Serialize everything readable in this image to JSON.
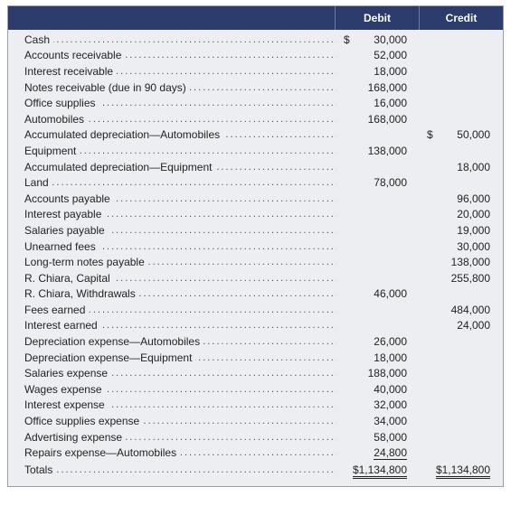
{
  "header": {
    "debit": "Debit",
    "credit": "Credit"
  },
  "currency_symbol": "$",
  "rows": [
    {
      "label": "Cash",
      "debit": "30,000",
      "credit": "",
      "debit_symbol": true
    },
    {
      "label": "Accounts receivable",
      "debit": "52,000",
      "credit": ""
    },
    {
      "label": "Interest receivable",
      "debit": "18,000",
      "credit": ""
    },
    {
      "label": "Notes receivable (due in 90 days)",
      "debit": "168,000",
      "credit": ""
    },
    {
      "label": "Office supplies",
      "debit": "16,000",
      "credit": ""
    },
    {
      "label": "Automobiles",
      "debit": "168,000",
      "credit": ""
    },
    {
      "label": "Accumulated depreciation—Automobiles",
      "debit": "",
      "credit": "50,000",
      "credit_symbol": true
    },
    {
      "label": "Equipment",
      "debit": "138,000",
      "credit": ""
    },
    {
      "label": "Accumulated depreciation—Equipment",
      "debit": "",
      "credit": "18,000"
    },
    {
      "label": "Land",
      "debit": "78,000",
      "credit": ""
    },
    {
      "label": "Accounts payable",
      "debit": "",
      "credit": "96,000"
    },
    {
      "label": "Interest payable",
      "debit": "",
      "credit": "20,000"
    },
    {
      "label": "Salaries payable",
      "debit": "",
      "credit": "19,000"
    },
    {
      "label": "Unearned fees",
      "debit": "",
      "credit": "30,000"
    },
    {
      "label": "Long-term notes payable",
      "debit": "",
      "credit": "138,000"
    },
    {
      "label": "R. Chiara, Capital",
      "debit": "",
      "credit": "255,800"
    },
    {
      "label": "R. Chiara, Withdrawals",
      "debit": "46,000",
      "credit": ""
    },
    {
      "label": "Fees earned",
      "debit": "",
      "credit": "484,000"
    },
    {
      "label": "Interest earned",
      "debit": "",
      "credit": "24,000"
    },
    {
      "label": "Depreciation expense—Automobiles",
      "debit": "26,000",
      "credit": ""
    },
    {
      "label": "Depreciation expense—Equipment",
      "debit": "18,000",
      "credit": ""
    },
    {
      "label": "Salaries expense",
      "debit": "188,000",
      "credit": ""
    },
    {
      "label": "Wages expense",
      "debit": "40,000",
      "credit": ""
    },
    {
      "label": "Interest expense",
      "debit": "32,000",
      "credit": ""
    },
    {
      "label": "Office supplies expense",
      "debit": "34,000",
      "credit": ""
    },
    {
      "label": "Advertising expense",
      "debit": "58,000",
      "credit": ""
    },
    {
      "label": "Repairs expense—Automobiles",
      "debit": "24,800",
      "credit": "",
      "debit_rule": "single"
    },
    {
      "label": "Totals",
      "debit": "$1,134,800",
      "credit": "$1,134,800",
      "debit_rule": "double",
      "credit_rule": "double"
    }
  ],
  "style": {
    "header_bg": "#2b3b6b",
    "header_fg": "#ffffff",
    "sheet_bg": "#edeef2",
    "border": "#9aa0aa",
    "text": "#222222",
    "font_size_body": 12,
    "col_width_amount": 92
  }
}
